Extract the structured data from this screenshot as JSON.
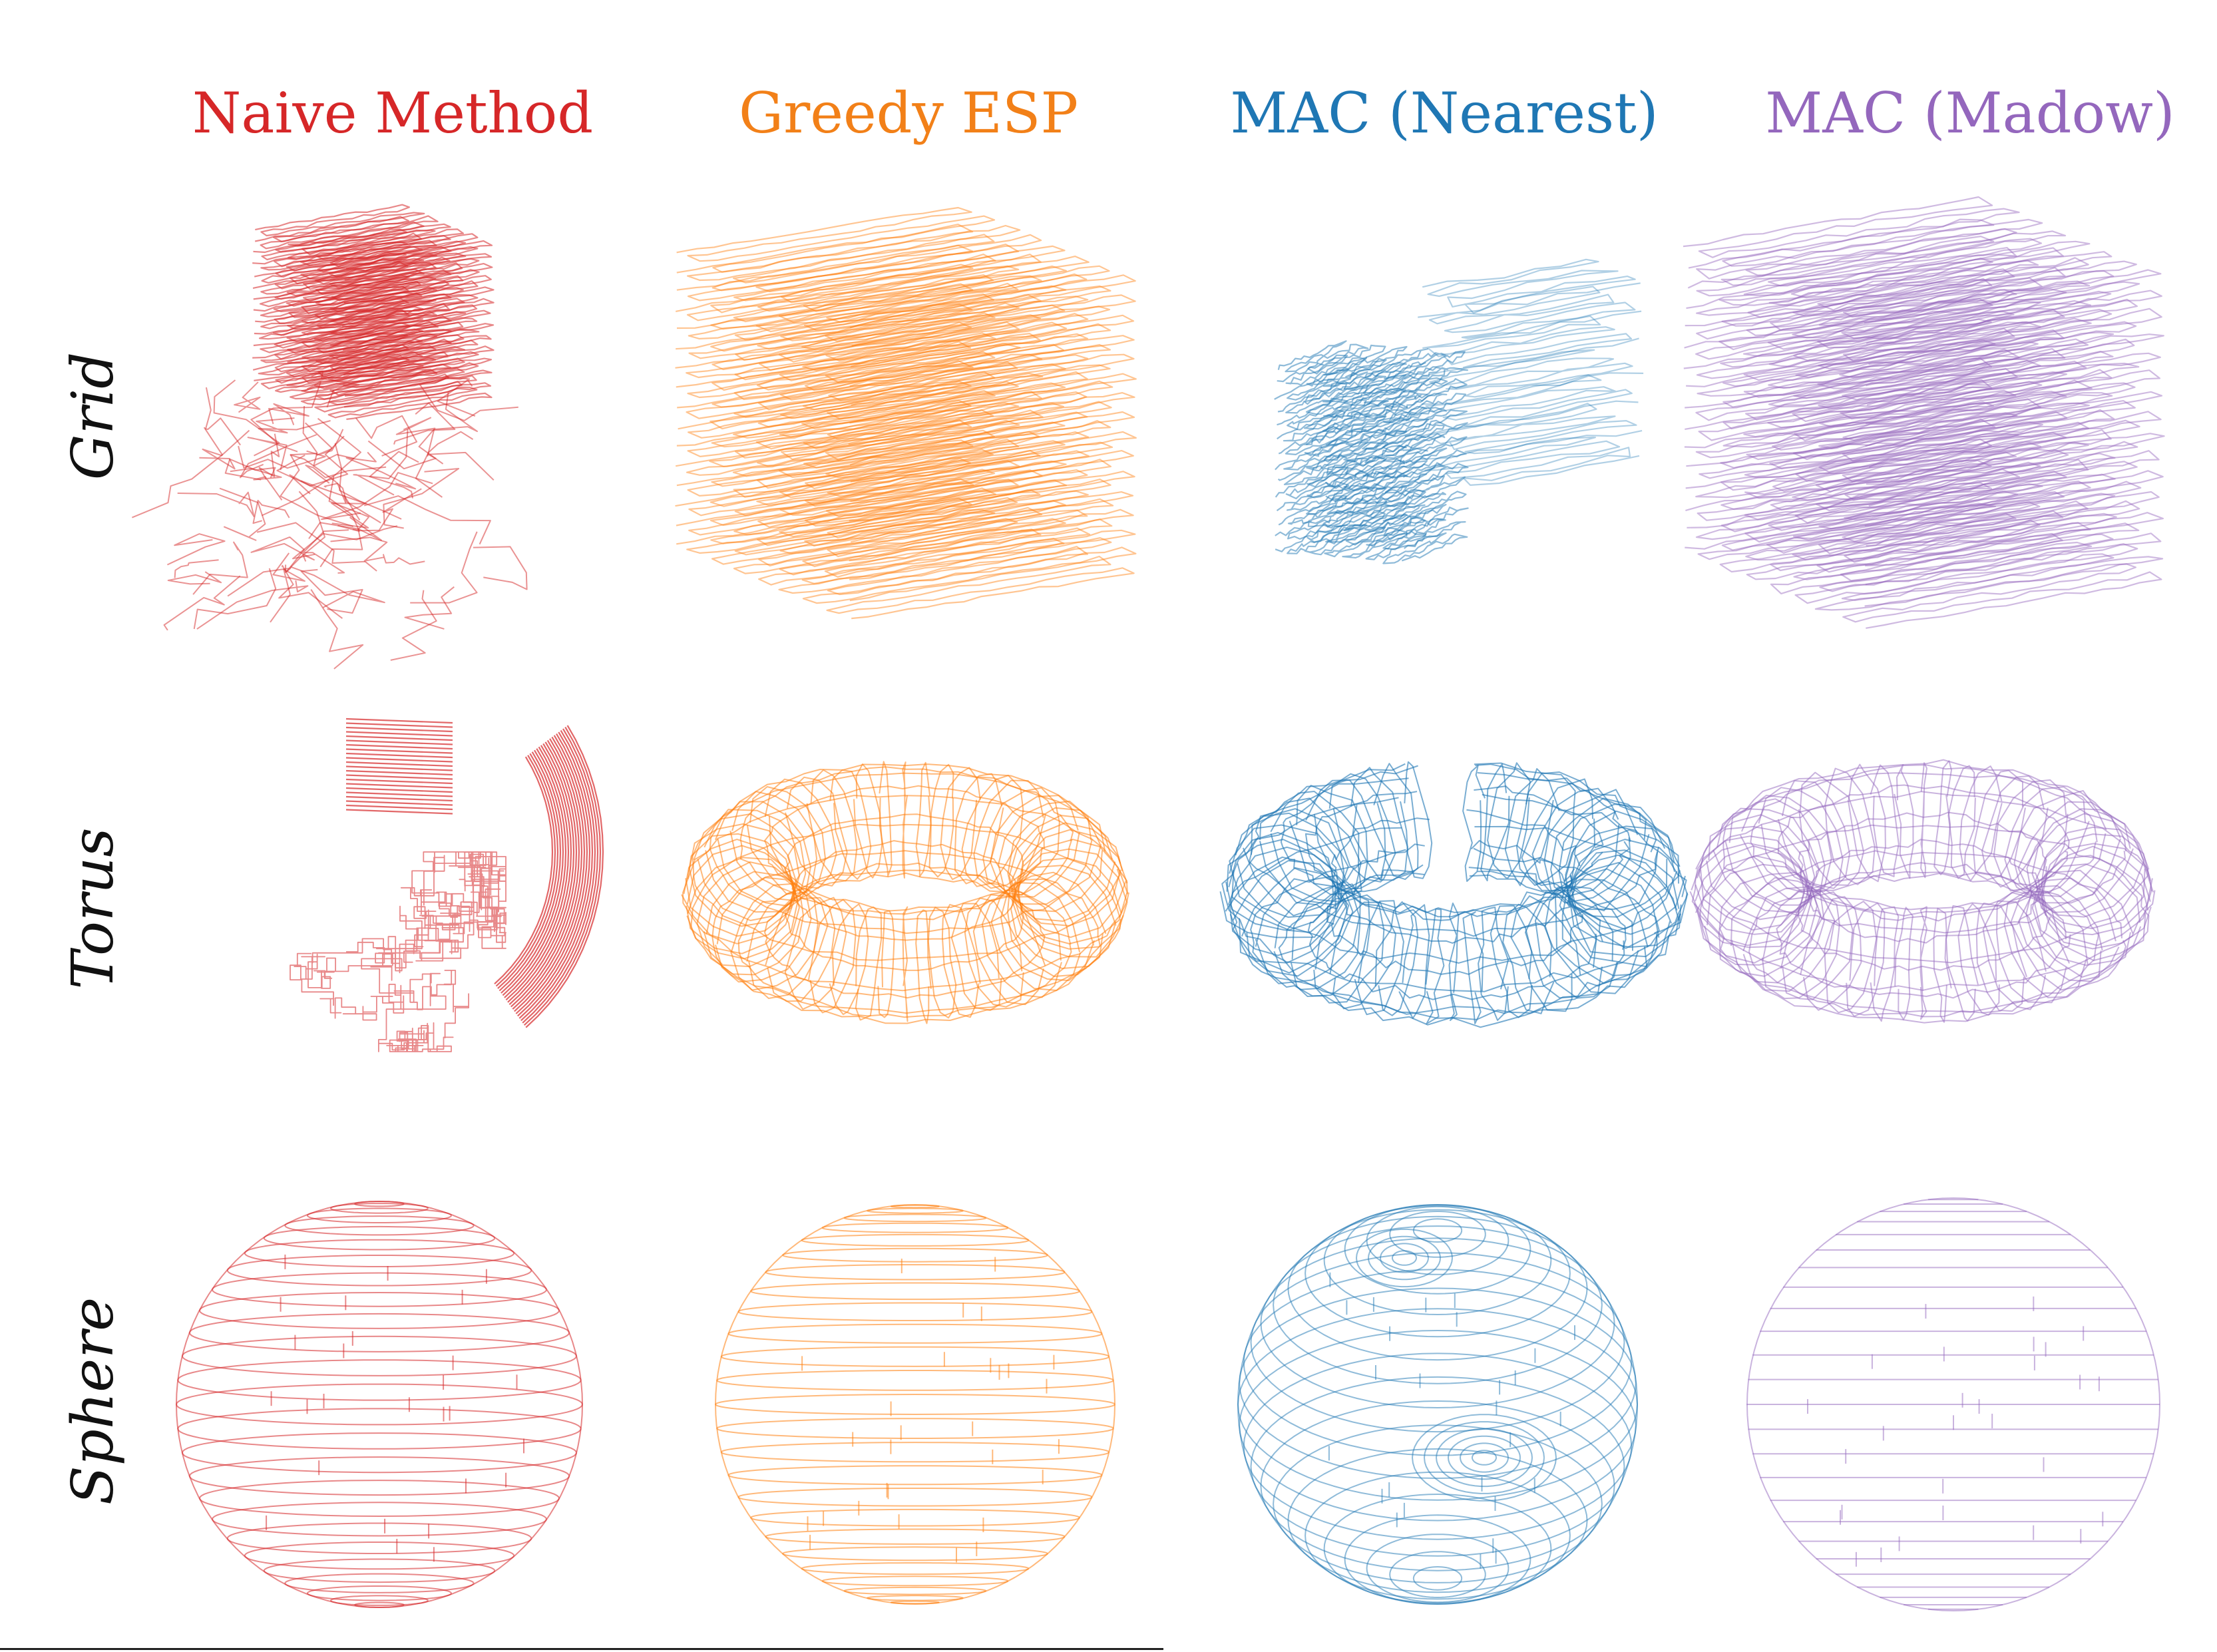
{
  "columns": [
    {
      "title": "Naive Method",
      "color": "#d62728"
    },
    {
      "title": "Greedy ESP",
      "color": "#ff7f0e"
    },
    {
      "title": "MAC (Nearest)",
      "color": "#1f77b4"
    },
    {
      "title": "MAC (Madow)",
      "color": "#9467bd"
    }
  ],
  "rows": [
    {
      "label": "Grid"
    },
    {
      "label": "Torus"
    },
    {
      "label": "Sphere"
    }
  ]
}
